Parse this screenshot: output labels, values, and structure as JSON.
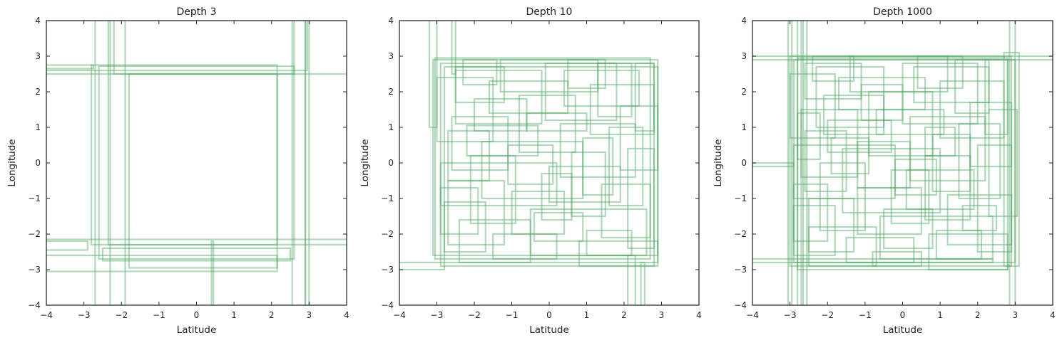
{
  "chart_data": [
    {
      "type": "line",
      "title": "Depth 3",
      "xlabel": "Latitude",
      "ylabel": "Longitude",
      "xlim": [
        -4,
        4
      ],
      "ylim": [
        -4,
        4
      ],
      "xticks": [
        "−4",
        "−3",
        "−2",
        "−1",
        "0",
        "1",
        "2",
        "3",
        "4"
      ],
      "yticks": [
        "−4",
        "−3",
        "−2",
        "−1",
        "0",
        "1",
        "2",
        "3",
        "4"
      ],
      "grid": false,
      "series_color": "#55a868",
      "boxes": [
        [
          -4.2,
          2.6,
          2.95,
          4.2
        ],
        [
          -2.35,
          -2.3,
          4.2,
          4.2
        ],
        [
          -2.2,
          2.5,
          2.6,
          4.2
        ],
        [
          -2.8,
          -2.3,
          2.15,
          2.75
        ],
        [
          -2.6,
          -2.7,
          2.6,
          2.72
        ],
        [
          -4.2,
          -2.15,
          4.2,
          2.5
        ],
        [
          -1.8,
          -2.95,
          2.15,
          2.5
        ],
        [
          0.4,
          -4.2,
          0.45,
          -2.2
        ],
        [
          -4.2,
          -2.45,
          -2.9,
          -2.2
        ],
        [
          -4.2,
          -3.05,
          2.15,
          -2.6
        ],
        [
          2.55,
          -4.2,
          4.2,
          4.2
        ],
        [
          -2.7,
          -4.2,
          2.9,
          4.2
        ],
        [
          -2.3,
          -4.2,
          -1.9,
          4.2
        ],
        [
          -2.5,
          -2.75,
          2.5,
          -2.4
        ],
        [
          2.9,
          -4.2,
          3.0,
          4.2
        ],
        [
          -4.2,
          2.65,
          -2.75,
          2.75
        ]
      ]
    },
    {
      "type": "line",
      "title": "Depth 10",
      "xlabel": "Latitude",
      "ylabel": "Longitude",
      "xlim": [
        -4,
        4
      ],
      "ylim": [
        -4,
        4
      ],
      "xticks": [
        "−4",
        "−3",
        "−2",
        "−1",
        "0",
        "1",
        "2",
        "3",
        "4"
      ],
      "yticks": [
        "−4",
        "−3",
        "−2",
        "−1",
        "0",
        "1",
        "2",
        "3",
        "4"
      ],
      "grid": false,
      "series_color": "#55a868",
      "boxes": [
        [
          -3.1,
          -2.6,
          2.9,
          2.9
        ],
        [
          -2.9,
          -2.9,
          2.8,
          2.8
        ],
        [
          -3.05,
          -2.7,
          2.7,
          2.95
        ],
        [
          -2.8,
          -2.8,
          2.9,
          2.7
        ],
        [
          -3.2,
          4.2,
          -3.0,
          1.0
        ],
        [
          -2.6,
          4.2,
          -2.5,
          2.5
        ],
        [
          -4.2,
          -3.0,
          -2.8,
          -2.8
        ],
        [
          2.1,
          -4.2,
          2.3,
          -2.6
        ],
        [
          2.45,
          -4.2,
          2.55,
          -2.8
        ],
        [
          -2.7,
          -2.3,
          -1.2,
          -0.5
        ],
        [
          -1.0,
          -2.0,
          0.4,
          -0.8
        ],
        [
          0.6,
          -1.5,
          1.5,
          0.3
        ],
        [
          -2.5,
          1.1,
          -0.2,
          2.6
        ],
        [
          -0.1,
          1.2,
          1.8,
          2.8
        ],
        [
          -2.9,
          -1.2,
          0.2,
          0.0
        ],
        [
          -0.5,
          -2.6,
          2.6,
          -1.3
        ],
        [
          1.4,
          -2.1,
          2.7,
          -0.6
        ],
        [
          -2.2,
          0.2,
          -0.3,
          1.05
        ],
        [
          0.3,
          -0.4,
          2.3,
          1.1
        ],
        [
          -1.8,
          -1.0,
          0.9,
          0.6
        ],
        [
          -3.0,
          0.6,
          -1.5,
          2.4
        ],
        [
          1.1,
          0.8,
          2.8,
          2.2
        ],
        [
          -2.4,
          -2.8,
          -0.5,
          -1.6
        ],
        [
          0.8,
          -2.9,
          2.9,
          -2.2
        ],
        [
          -1.3,
          2.0,
          1.3,
          2.9
        ],
        [
          -2.6,
          -0.2,
          -1.1,
          1.3
        ],
        [
          -0.8,
          0.3,
          0.7,
          1.9
        ],
        [
          1.6,
          -1.2,
          2.5,
          1.0
        ],
        [
          -2.1,
          -1.7,
          -0.9,
          0.2
        ],
        [
          0.0,
          -1.1,
          1.9,
          -0.1
        ],
        [
          -1.6,
          1.4,
          0.5,
          2.3
        ],
        [
          2.1,
          -2.4,
          2.8,
          0.4
        ],
        [
          -2.9,
          -2.0,
          -1.9,
          -0.7
        ],
        [
          0.4,
          1.6,
          2.4,
          2.6
        ],
        [
          -0.4,
          -2.2,
          0.9,
          -1.4
        ],
        [
          -1.1,
          -0.6,
          0.1,
          0.5
        ],
        [
          1.3,
          1.3,
          2.2,
          2.8
        ],
        [
          -2.3,
          2.2,
          -1.4,
          2.9
        ],
        [
          -2.7,
          -0.5,
          -1.6,
          0.9
        ],
        [
          0.9,
          -0.9,
          1.7,
          0.7
        ],
        [
          -1.5,
          -2.7,
          0.2,
          -2.0
        ],
        [
          1.9,
          -0.2,
          2.9,
          1.6
        ],
        [
          -0.2,
          -1.6,
          0.6,
          -0.3
        ],
        [
          -2.0,
          0.9,
          -0.6,
          1.8
        ],
        [
          0.5,
          2.1,
          1.5,
          2.9
        ],
        [
          2.3,
          0.9,
          2.8,
          2.8
        ],
        [
          -2.5,
          1.7,
          -1.2,
          2.7
        ],
        [
          -0.6,
          0.9,
          1.0,
          1.4
        ],
        [
          -2.8,
          -2.5,
          -1.7,
          -1.1
        ],
        [
          1.0,
          -2.6,
          2.2,
          -1.9
        ]
      ]
    },
    {
      "type": "line",
      "title": "Depth 1000",
      "xlabel": "Latitude",
      "ylabel": "Longitude",
      "xlim": [
        -4,
        4
      ],
      "ylim": [
        -4,
        4
      ],
      "xticks": [
        "−4",
        "−3",
        "−2",
        "−1",
        "0",
        "1",
        "2",
        "3",
        "4"
      ],
      "yticks": [
        "−4",
        "−3",
        "−2",
        "−1",
        "0",
        "1",
        "2",
        "3",
        "4"
      ],
      "grid": false,
      "series_color": "#55a868",
      "boxes": [
        [
          -3.0,
          -2.9,
          2.9,
          3.0
        ],
        [
          -2.9,
          -2.8,
          3.0,
          2.9
        ],
        [
          -2.8,
          -3.0,
          2.8,
          2.95
        ],
        [
          -4.2,
          2.9,
          4.2,
          3.0
        ],
        [
          -4.2,
          -2.8,
          2.4,
          -2.7
        ],
        [
          -4.2,
          -0.1,
          -2.9,
          0.0
        ],
        [
          -3.05,
          -4.2,
          -2.95,
          4.2
        ],
        [
          -2.8,
          -4.2,
          -2.7,
          4.2
        ],
        [
          -2.65,
          -4.2,
          -2.55,
          4.2
        ],
        [
          2.85,
          -4.2,
          3.0,
          4.2
        ],
        [
          2.7,
          -2.9,
          3.1,
          3.1
        ],
        [
          -2.5,
          -2.5,
          -1.3,
          -1.0
        ],
        [
          -1.2,
          -2.0,
          0.5,
          -0.7
        ],
        [
          0.6,
          -1.6,
          1.8,
          0.2
        ],
        [
          -2.3,
          1.0,
          -0.5,
          2.7
        ],
        [
          0.0,
          1.1,
          2.0,
          2.8
        ],
        [
          -2.9,
          -1.0,
          -0.2,
          0.5
        ],
        [
          -0.6,
          -2.7,
          2.4,
          -1.5
        ],
        [
          1.2,
          -2.3,
          2.9,
          -0.9
        ],
        [
          -2.0,
          0.3,
          -0.3,
          1.2
        ],
        [
          0.2,
          -0.5,
          2.2,
          1.3
        ],
        [
          -1.6,
          -1.4,
          1.0,
          0.4
        ],
        [
          -3.0,
          0.7,
          -1.8,
          2.5
        ],
        [
          1.0,
          0.7,
          2.7,
          2.3
        ],
        [
          -2.5,
          -2.9,
          -0.7,
          -1.8
        ],
        [
          0.7,
          -3.0,
          2.8,
          -2.0
        ],
        [
          -1.4,
          2.0,
          1.2,
          3.0
        ],
        [
          -2.7,
          -0.4,
          -1.2,
          1.5
        ],
        [
          -0.9,
          0.2,
          0.8,
          2.0
        ],
        [
          1.5,
          -1.0,
          2.6,
          1.1
        ],
        [
          -2.2,
          -1.9,
          -1.0,
          0.0
        ],
        [
          0.1,
          -1.3,
          1.9,
          -0.2
        ],
        [
          -1.7,
          1.5,
          0.6,
          2.4
        ],
        [
          2.0,
          -2.5,
          2.9,
          0.5
        ],
        [
          -2.9,
          -2.2,
          -2.0,
          -0.6
        ],
        [
          0.3,
          1.7,
          2.3,
          2.7
        ],
        [
          -0.5,
          -2.4,
          0.8,
          -1.3
        ],
        [
          -1.2,
          -0.7,
          0.2,
          0.6
        ],
        [
          1.4,
          1.4,
          2.3,
          2.9
        ],
        [
          -2.4,
          2.3,
          -1.3,
          3.0
        ],
        [
          -2.6,
          -0.8,
          -1.5,
          0.9
        ],
        [
          0.8,
          -0.8,
          1.8,
          0.8
        ],
        [
          -1.5,
          -2.8,
          0.3,
          -2.1
        ],
        [
          1.8,
          -0.1,
          2.9,
          1.7
        ],
        [
          -0.3,
          -1.7,
          0.7,
          -0.2
        ],
        [
          -2.1,
          0.8,
          -0.5,
          1.9
        ],
        [
          0.4,
          2.1,
          1.6,
          3.0
        ],
        [
          2.2,
          0.8,
          2.8,
          2.9
        ],
        [
          -2.6,
          1.8,
          -1.1,
          2.8
        ],
        [
          -0.7,
          0.8,
          1.1,
          1.5
        ],
        [
          -2.9,
          -2.6,
          -1.8,
          -1.2
        ],
        [
          0.9,
          -2.7,
          2.1,
          -1.9
        ],
        [
          -1.9,
          -0.3,
          -0.9,
          0.7
        ],
        [
          0.6,
          0.2,
          1.4,
          1.0
        ],
        [
          1.6,
          -1.9,
          2.5,
          -1.2
        ],
        [
          -1.1,
          1.2,
          0.0,
          2.2
        ],
        [
          -0.2,
          -0.9,
          0.9,
          0.1
        ],
        [
          2.3,
          -1.5,
          3.05,
          1.5
        ],
        [
          -2.8,
          0.1,
          -2.2,
          1.4
        ],
        [
          -0.8,
          -2.9,
          0.5,
          -2.5
        ]
      ]
    }
  ]
}
